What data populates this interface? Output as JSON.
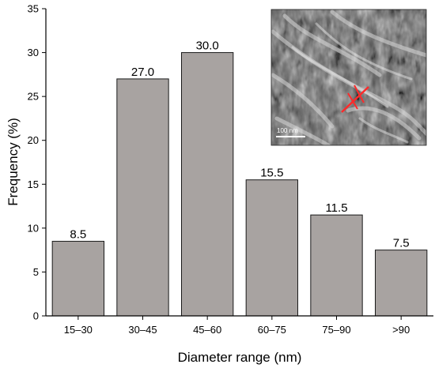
{
  "chart_data": {
    "type": "bar",
    "title": "",
    "xlabel": "Diameter range (nm)",
    "ylabel": "Frequency (%)",
    "categories": [
      "15–30",
      "30–45",
      "45–60",
      "60–75",
      "75–90",
      ">90"
    ],
    "values": [
      8.5,
      27.0,
      30.0,
      15.5,
      11.5,
      7.5
    ],
    "value_labels": [
      "8.5",
      "27.0",
      "30.0",
      "15.5",
      "11.5",
      "7.5"
    ],
    "ylim": [
      0,
      35
    ],
    "yticks": [
      0,
      5,
      10,
      15,
      20,
      25,
      30,
      35
    ],
    "grid": false,
    "bar_color": "#a8a3a1",
    "bar_edge_color": "#1a1a1a"
  },
  "inset": {
    "description": "SEM micrograph inset (top-right)",
    "scale_bar_label": "100 nm",
    "marker_color": "#ff2a2a"
  }
}
